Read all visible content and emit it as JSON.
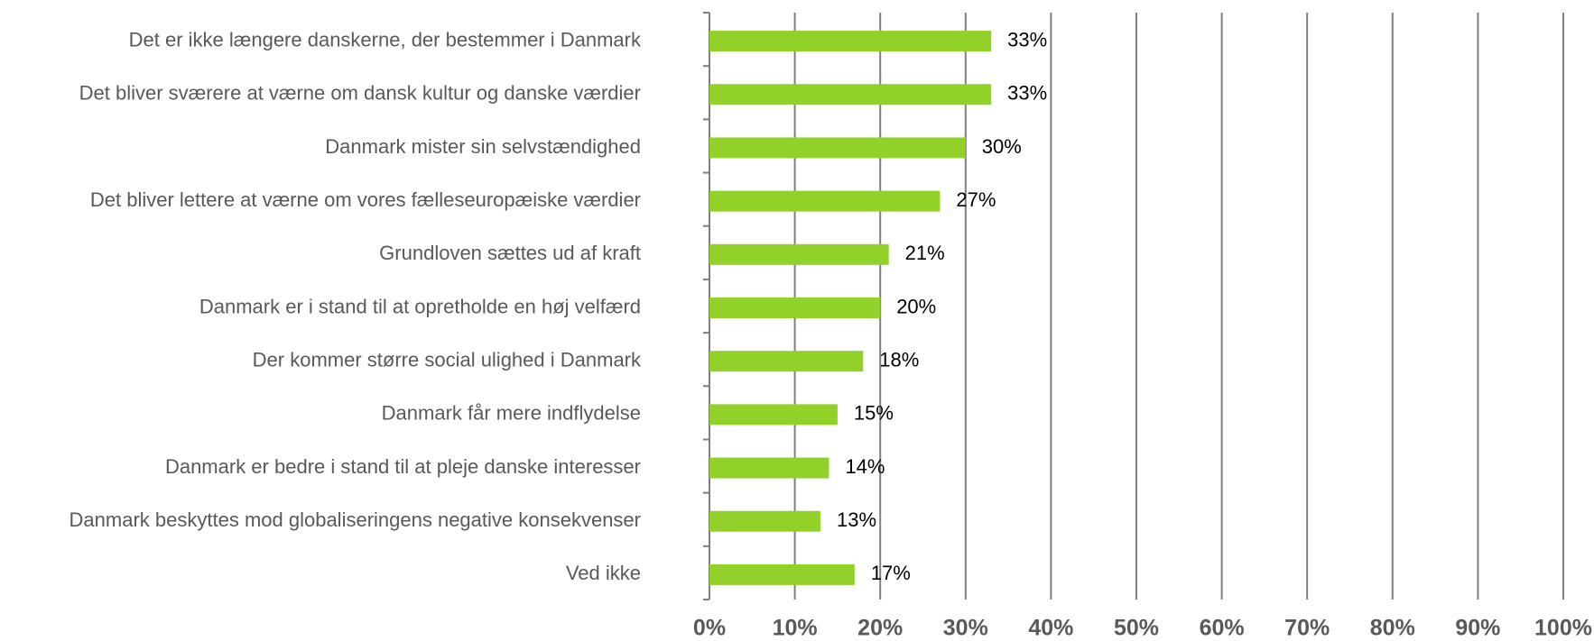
{
  "chart_data": {
    "type": "barh",
    "categories": [
      "Det er ikke længere danskerne, der bestemmer i Danmark",
      "Det bliver sværere at værne om dansk kultur og danske værdier",
      "Danmark mister sin selvstændighed",
      "Det bliver lettere at værne om vores fælleseuropæiske værdier",
      "Grundloven sættes ud af kraft",
      "Danmark er i stand til at opretholde en høj velfærd",
      "Der kommer større social ulighed i Danmark",
      "Danmark får mere indflydelse",
      "Danmark er bedre i stand til at pleje danske interesser",
      "Danmark beskyttes mod globaliseringens negative konsekvenser",
      "Ved ikke"
    ],
    "values": [
      33,
      33,
      30,
      27,
      21,
      20,
      18,
      15,
      14,
      13,
      17
    ],
    "value_labels": [
      "33%",
      "33%",
      "30%",
      "27%",
      "21%",
      "20%",
      "18%",
      "15%",
      "14%",
      "13%",
      "17%"
    ],
    "color": "#92d12a",
    "xlim": [
      0,
      100
    ],
    "xticks": [
      {
        "value": 0,
        "label": "0%"
      },
      {
        "value": 10,
        "label": "10%"
      },
      {
        "value": 20,
        "label": "20%"
      },
      {
        "value": 30,
        "label": "30%"
      },
      {
        "value": 40,
        "label": "40%"
      },
      {
        "value": 50,
        "label": "50%"
      },
      {
        "value": 60,
        "label": "60%"
      },
      {
        "value": 70,
        "label": "70%"
      },
      {
        "value": 80,
        "label": "80%"
      },
      {
        "value": 90,
        "label": "90%"
      },
      {
        "value": 100,
        "label": "100%"
      }
    ],
    "grid": true
  }
}
